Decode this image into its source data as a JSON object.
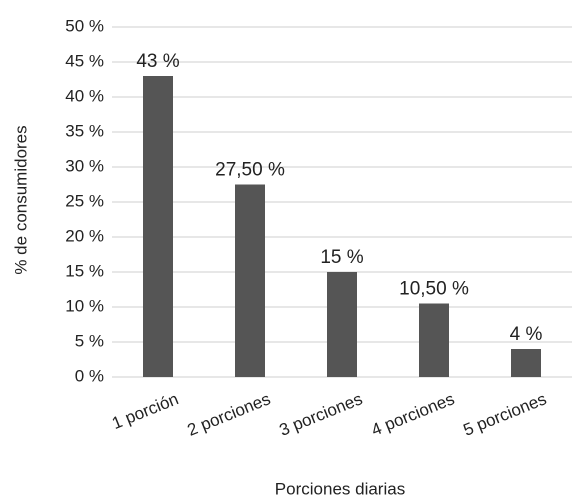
{
  "chart_data": {
    "type": "bar",
    "x_label": "Porciones diarias",
    "y_label": "% de consumidores",
    "categories": [
      "1 porción",
      "2 porciones",
      "3 porciones",
      "4 porciones",
      "5 porciones"
    ],
    "values": [
      43,
      27.5,
      15,
      10.5,
      4
    ],
    "value_labels": [
      "43 %",
      "27,50 %",
      "15 %",
      "10,50 %",
      "4 %"
    ],
    "color": "#555555",
    "ylim": [
      0,
      50
    ],
    "yticks": [
      {
        "value": 0,
        "label": "0 %"
      },
      {
        "value": 5,
        "label": "5 %"
      },
      {
        "value": 10,
        "label": "10 %"
      },
      {
        "value": 15,
        "label": "15 %"
      },
      {
        "value": 20,
        "label": "20 %"
      },
      {
        "value": 25,
        "label": "25 %"
      },
      {
        "value": 30,
        "label": "30 %"
      },
      {
        "value": 35,
        "label": "35 %"
      },
      {
        "value": 40,
        "label": "40 %"
      },
      {
        "value": 45,
        "label": "45 %"
      },
      {
        "value": 50,
        "label": "50 %"
      }
    ],
    "grid": true
  }
}
